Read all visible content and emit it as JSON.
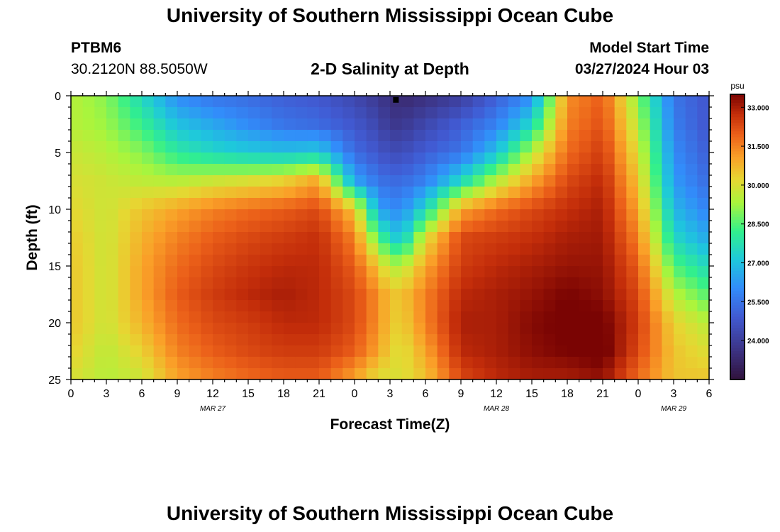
{
  "header": {
    "title": "University of Southern Mississippi Ocean Cube",
    "station_id": "PTBM6",
    "coords": "30.2120N  88.5050W",
    "plot_title": "2-D Salinity at Depth",
    "model_label": "Model Start Time",
    "model_time": "03/27/2024 Hour 03"
  },
  "footer": {
    "title": "University of Southern Mississippi Ocean Cube"
  },
  "chart_data": {
    "type": "heatmap",
    "title": "2-D Salinity at Depth",
    "xlabel": "Forecast Time(Z)",
    "ylabel": "Depth (ft)",
    "x_range_hours": [
      0,
      54
    ],
    "y_range": [
      0,
      25
    ],
    "y_inverted": true,
    "x_tick_labels": [
      "0",
      "3",
      "6",
      "9",
      "12",
      "15",
      "18",
      "21",
      "0",
      "3",
      "6",
      "9",
      "12",
      "15",
      "18",
      "21",
      "0",
      "3",
      "6"
    ],
    "y_tick_labels": [
      "0",
      "5",
      "10",
      "15",
      "20",
      "25"
    ],
    "date_labels": [
      {
        "label": "MAR 27",
        "hour": 12
      },
      {
        "label": "MAR 28",
        "hour": 36
      },
      {
        "label": "MAR 29",
        "hour": 51
      }
    ],
    "colorbar": {
      "unit": "psu",
      "min": 22.5,
      "max": 33.5,
      "tick_labels": [
        "33.000",
        "31.500",
        "30.000",
        "28.500",
        "27.000",
        "25.500",
        "24.000"
      ],
      "tick_values": [
        33.0,
        31.5,
        30.0,
        28.5,
        27.0,
        25.5,
        24.0
      ]
    },
    "marker": {
      "hour": 27.5,
      "depth": 0.3
    },
    "salinity_profiles": {
      "depths_ft": [
        0,
        2.5,
        5,
        7.5,
        10,
        12.5,
        15,
        17.5,
        20,
        22.5,
        25
      ],
      "columns": [
        {
          "hour": 0,
          "values": [
            29.5,
            29.5,
            29.8,
            30.0,
            30.2,
            30.4,
            30.5,
            30.5,
            30.5,
            30.3,
            30.0
          ]
        },
        {
          "hour": 3,
          "values": [
            29.0,
            29.2,
            29.5,
            29.8,
            29.8,
            29.8,
            29.8,
            29.8,
            29.8,
            29.6,
            29.5
          ]
        },
        {
          "hour": 6,
          "values": [
            27.5,
            28.2,
            29.0,
            29.6,
            30.5,
            30.8,
            31.0,
            31.0,
            30.8,
            30.3,
            29.8
          ]
        },
        {
          "hour": 9,
          "values": [
            26.0,
            27.0,
            28.0,
            29.5,
            31.0,
            31.5,
            31.8,
            32.0,
            31.8,
            31.5,
            31.0
          ]
        },
        {
          "hour": 12,
          "values": [
            25.5,
            26.5,
            27.5,
            29.8,
            31.5,
            32.0,
            32.3,
            32.5,
            32.3,
            32.0,
            31.5
          ]
        },
        {
          "hour": 15,
          "values": [
            25.3,
            26.0,
            27.2,
            30.0,
            31.8,
            32.3,
            32.6,
            32.8,
            32.5,
            32.3,
            31.8
          ]
        },
        {
          "hour": 18,
          "values": [
            25.0,
            25.5,
            27.0,
            30.3,
            32.0,
            32.5,
            32.8,
            33.0,
            32.8,
            32.5,
            32.0
          ]
        },
        {
          "hour": 21,
          "values": [
            24.8,
            25.3,
            27.2,
            31.0,
            32.3,
            32.7,
            32.8,
            32.8,
            32.8,
            32.5,
            32.0
          ]
        },
        {
          "hour": 24,
          "values": [
            24.3,
            24.8,
            25.3,
            26.5,
            30.5,
            31.5,
            32.0,
            32.3,
            32.3,
            32.0,
            31.0
          ]
        },
        {
          "hour": 26,
          "values": [
            23.8,
            24.3,
            24.8,
            25.5,
            26.5,
            28.5,
            30.5,
            31.3,
            31.3,
            31.0,
            30.0
          ]
        },
        {
          "hour": 27,
          "values": [
            23.5,
            23.8,
            24.5,
            25.3,
            26.0,
            27.5,
            29.5,
            30.5,
            30.5,
            30.3,
            30.0
          ]
        },
        {
          "hour": 28,
          "values": [
            23.3,
            23.8,
            24.5,
            25.3,
            26.0,
            27.0,
            29.5,
            30.5,
            30.3,
            30.0,
            30.0
          ]
        },
        {
          "hour": 30,
          "values": [
            23.5,
            24.3,
            25.0,
            25.8,
            27.5,
            30.0,
            31.0,
            31.5,
            31.5,
            31.0,
            30.5
          ]
        },
        {
          "hour": 33,
          "values": [
            24.0,
            25.0,
            25.5,
            27.5,
            31.0,
            32.3,
            32.5,
            32.8,
            33.0,
            32.8,
            32.3
          ]
        },
        {
          "hour": 36,
          "values": [
            25.0,
            25.8,
            27.0,
            29.5,
            31.8,
            32.5,
            32.8,
            33.0,
            33.0,
            33.0,
            32.8
          ]
        },
        {
          "hour": 39,
          "values": [
            26.0,
            27.5,
            29.5,
            31.0,
            32.3,
            32.7,
            33.0,
            33.2,
            33.4,
            33.3,
            33.0
          ]
        },
        {
          "hour": 42,
          "values": [
            31.3,
            31.5,
            31.8,
            32.3,
            32.7,
            33.0,
            33.2,
            33.5,
            33.6,
            33.5,
            33.0
          ]
        },
        {
          "hour": 45,
          "values": [
            32.0,
            32.2,
            32.5,
            32.8,
            33.0,
            33.1,
            33.2,
            33.3,
            33.6,
            33.7,
            33.2
          ]
        },
        {
          "hour": 48,
          "values": [
            29.0,
            29.5,
            30.0,
            30.5,
            31.0,
            31.5,
            32.0,
            32.3,
            32.5,
            32.3,
            31.8
          ]
        },
        {
          "hour": 51,
          "values": [
            25.5,
            25.7,
            26.0,
            26.3,
            26.8,
            27.5,
            28.5,
            29.5,
            30.3,
            30.5,
            30.5
          ]
        },
        {
          "hour": 54,
          "values": [
            24.8,
            24.8,
            25.0,
            25.3,
            25.8,
            26.5,
            27.5,
            28.5,
            29.5,
            30.0,
            30.5
          ]
        }
      ]
    }
  }
}
